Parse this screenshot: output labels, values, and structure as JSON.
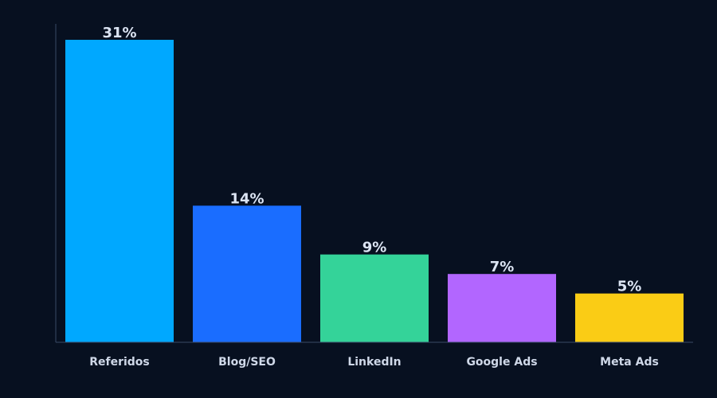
{
  "chart_data": {
    "type": "bar",
    "title": "",
    "xlabel": "",
    "ylabel": "",
    "categories": [
      "Referidos",
      "Blog/SEO",
      "LinkedIn",
      "Google Ads",
      "Meta Ads"
    ],
    "values": [
      31,
      14,
      9,
      7,
      5
    ],
    "value_labels": [
      "31%",
      "14%",
      "9%",
      "7%",
      "5%"
    ],
    "colors": [
      "#00a8ff",
      "#1a6dff",
      "#34d399",
      "#b266ff",
      "#facc15"
    ],
    "ylim": [
      0,
      31
    ],
    "unit": "%",
    "grid": false,
    "legend": "none"
  },
  "colors": {
    "background": "#071020",
    "axis": "#3a4a66",
    "label_text": "#dbe4f3"
  }
}
